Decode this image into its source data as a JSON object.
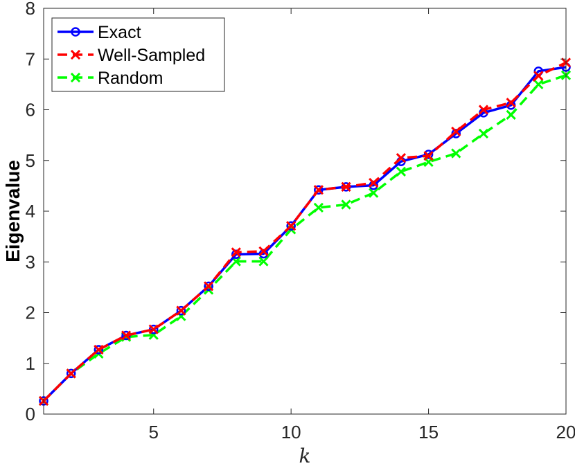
{
  "chart_data": {
    "type": "line",
    "title": "",
    "xlabel": "k",
    "ylabel": "Eigenvalue",
    "xlim": [
      1,
      20
    ],
    "ylim": [
      0,
      8
    ],
    "xticks": [
      5,
      10,
      15,
      20
    ],
    "yticks": [
      0,
      1,
      2,
      3,
      4,
      5,
      6,
      7,
      8
    ],
    "grid": false,
    "legend_position": "top-left",
    "x": [
      1,
      2,
      3,
      4,
      5,
      6,
      7,
      8,
      9,
      10,
      11,
      12,
      13,
      14,
      15,
      16,
      17,
      18,
      19,
      20
    ],
    "series": [
      {
        "name": "Exact",
        "color": "#0000ff",
        "line_style": "solid",
        "marker": "circle",
        "values": [
          0.26,
          0.8,
          1.27,
          1.55,
          1.67,
          2.04,
          2.52,
          3.15,
          3.16,
          3.71,
          4.42,
          4.48,
          4.51,
          4.98,
          5.12,
          5.53,
          5.94,
          6.09,
          6.76,
          6.84
        ]
      },
      {
        "name": "Well-Sampled",
        "color": "#ff0000",
        "line_style": "dashed",
        "marker": "x",
        "values": [
          0.26,
          0.8,
          1.27,
          1.55,
          1.67,
          2.04,
          2.52,
          3.19,
          3.21,
          3.71,
          4.42,
          4.48,
          4.56,
          5.05,
          5.09,
          5.57,
          6.0,
          6.14,
          6.67,
          6.93
        ]
      },
      {
        "name": "Random",
        "color": "#00ff00",
        "line_style": "dashed",
        "marker": "x",
        "values": [
          0.26,
          0.8,
          1.19,
          1.52,
          1.56,
          1.93,
          2.45,
          3.01,
          3.01,
          3.64,
          4.07,
          4.13,
          4.36,
          4.78,
          4.97,
          5.14,
          5.53,
          5.9,
          6.5,
          6.68
        ]
      }
    ]
  }
}
